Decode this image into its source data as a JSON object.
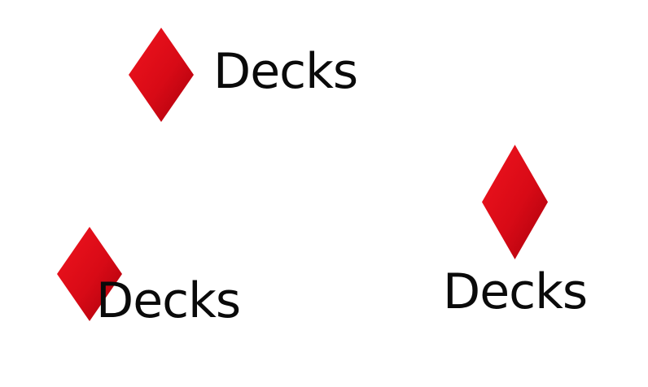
{
  "logos": [
    {
      "label": "Decks",
      "icon": "diamond-suit-icon"
    },
    {
      "label": "Decks",
      "icon": "diamond-suit-icon"
    },
    {
      "label": "Decks",
      "icon": "diamond-suit-icon"
    }
  ],
  "colors": {
    "diamond_light": "#e8101a",
    "diamond_dark": "#b8000e",
    "text": "#0a0a0a",
    "background": "#ffffff"
  }
}
